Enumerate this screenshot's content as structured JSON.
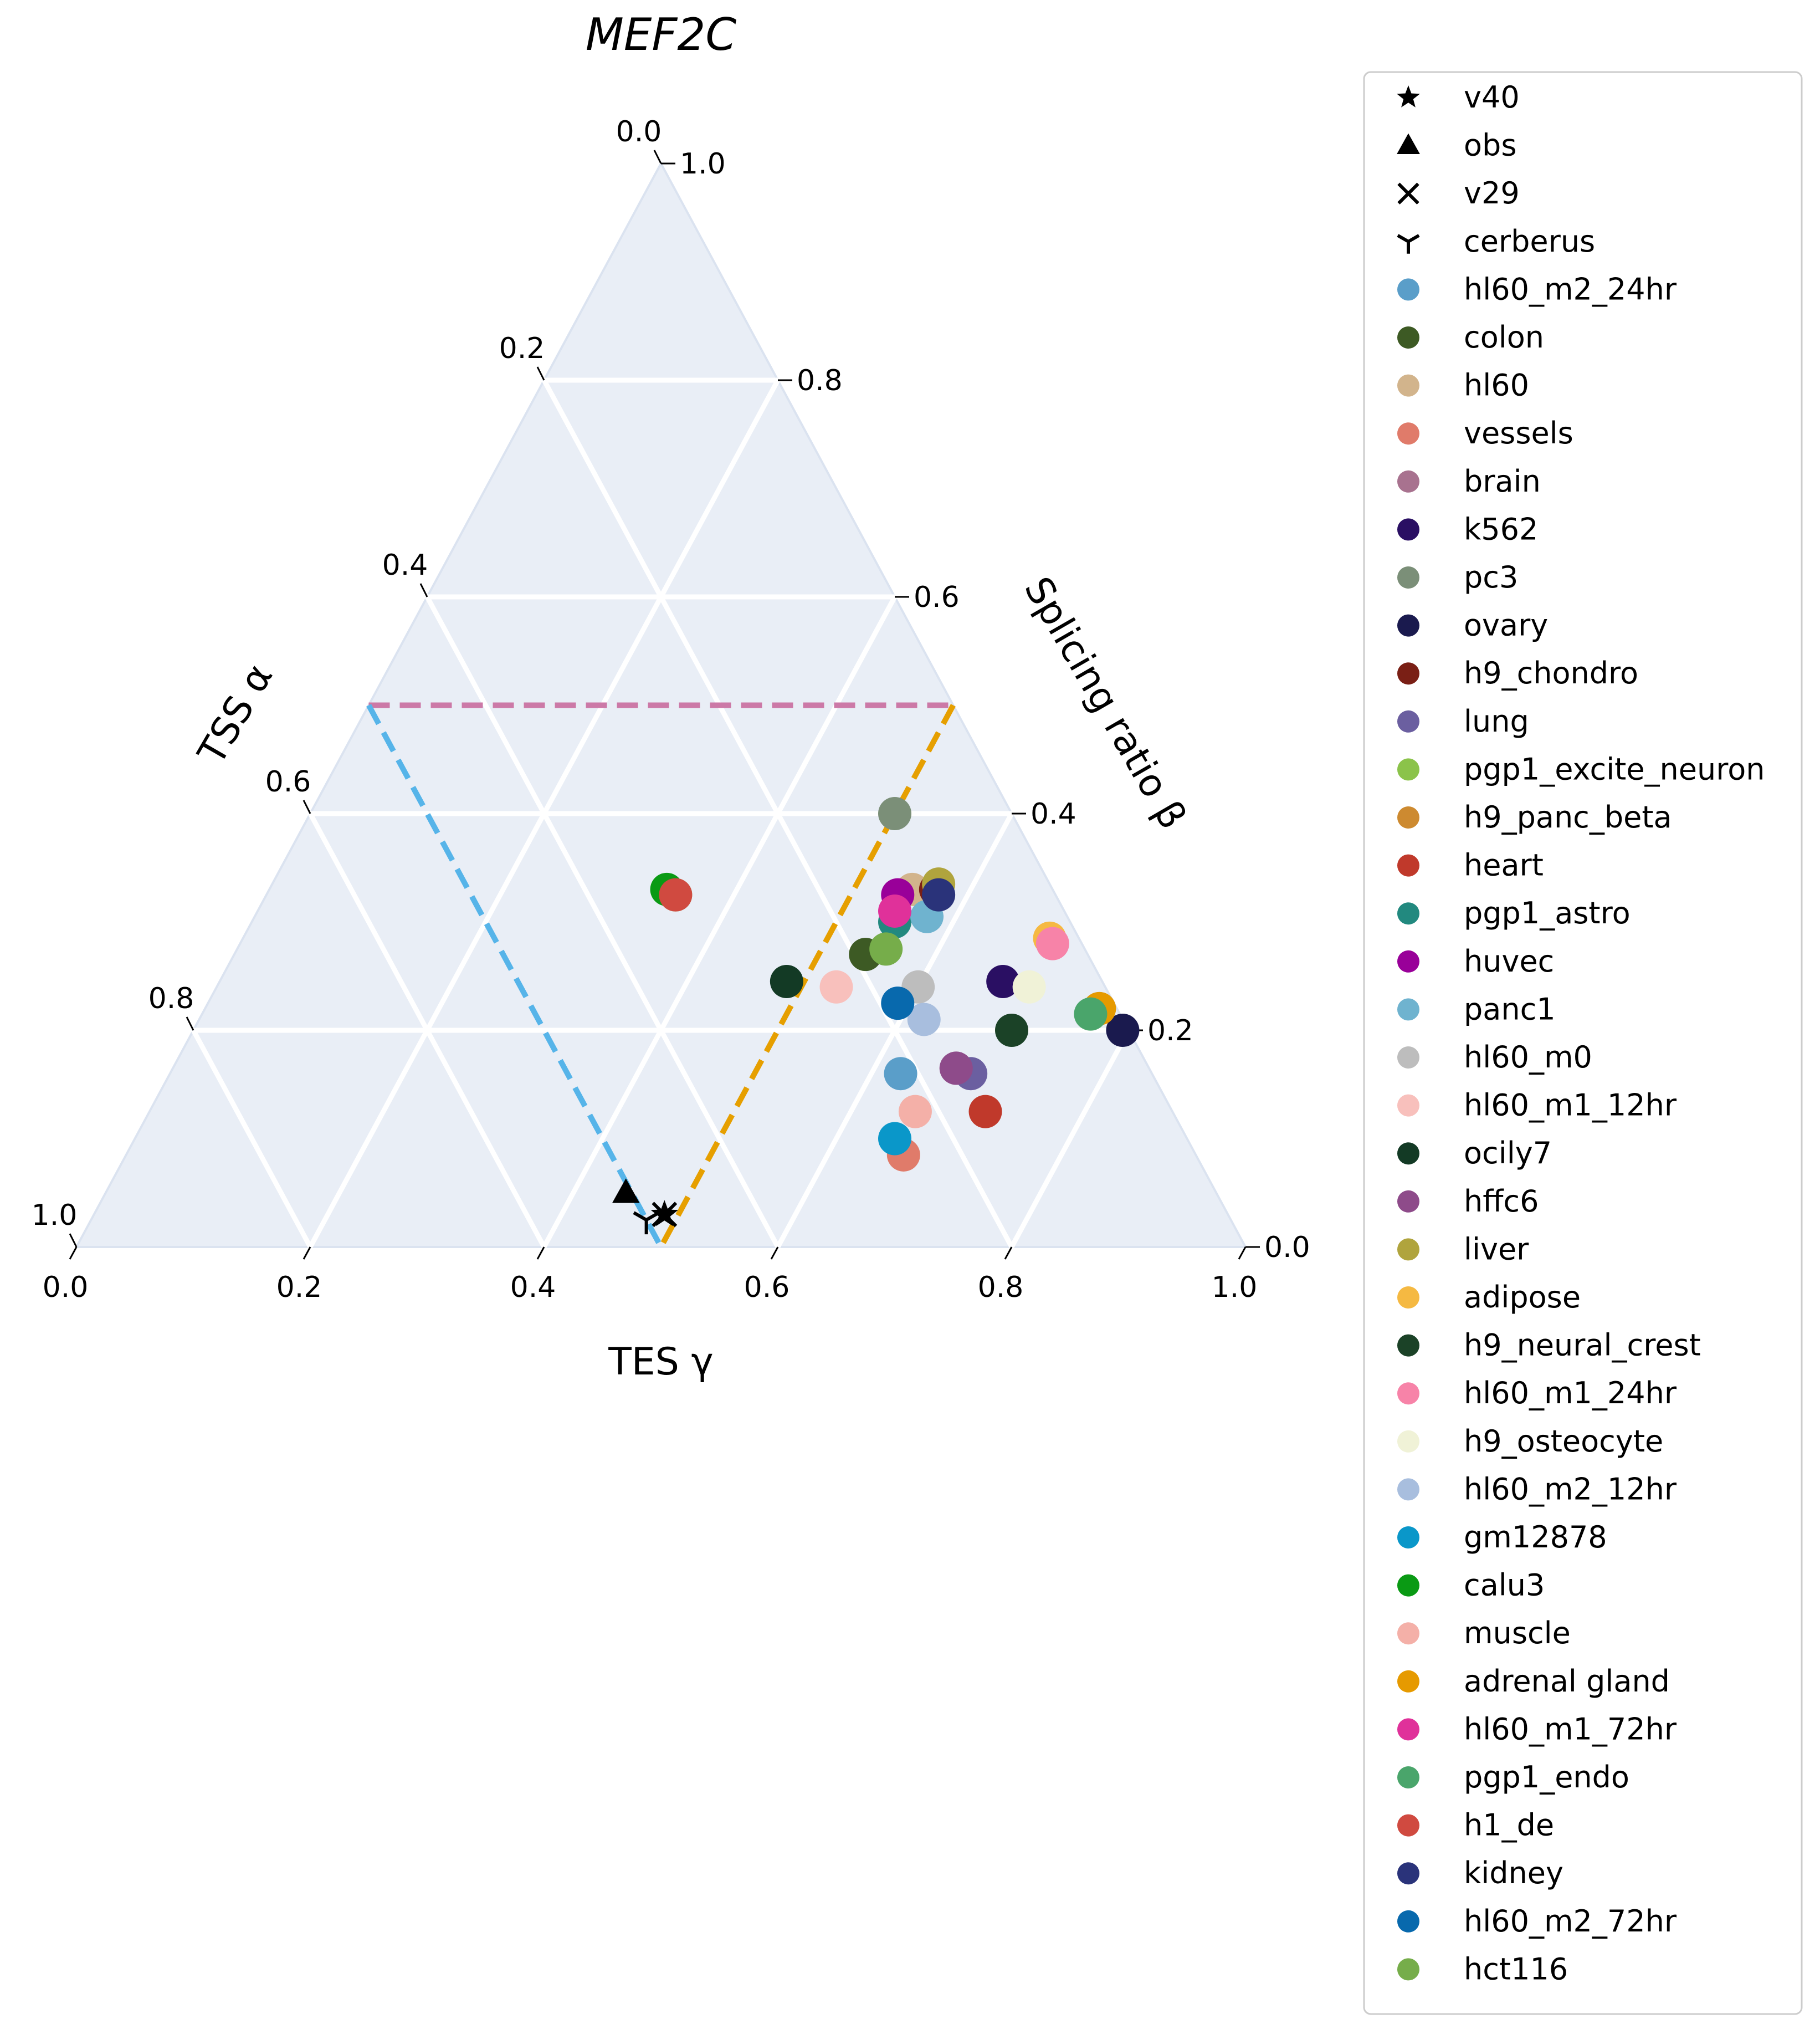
{
  "chart_data": {
    "type": "ternary-scatter",
    "title": "MEF2C",
    "axes": {
      "bottom": {
        "label": "TES γ",
        "ticks": [
          "0.0",
          "0.2",
          "0.4",
          "0.6",
          "0.8",
          "1.0"
        ]
      },
      "left": {
        "label": "TSS α",
        "ticks": [
          "0.0",
          "0.2",
          "0.4",
          "0.6",
          "0.8",
          "1.0"
        ]
      },
      "right": {
        "label": "Splicing ratio β",
        "ticks": [
          "0.0",
          "0.2",
          "0.4",
          "0.6",
          "0.8",
          "1.0"
        ]
      }
    },
    "grid": true,
    "background_color": "#e9eef6",
    "sector_lines": [
      {
        "color": "#cc79a7",
        "from": [
          0.5,
          0.5,
          0.0
        ],
        "to": [
          0.0,
          0.5,
          0.5
        ]
      },
      {
        "color": "#56b4e9",
        "from": [
          0.5,
          0.5,
          0.0
        ],
        "to": [
          0.5,
          0.0,
          0.5
        ]
      },
      {
        "color": "#e69f00",
        "from": [
          0.0,
          0.5,
          0.5
        ],
        "to": [
          0.5,
          0.0,
          0.5
        ]
      }
    ],
    "legend_position": "right",
    "series": [
      {
        "name": "v40",
        "marker": "star",
        "color": "#000000",
        "points": [
          [
            0.482,
            0.03,
            0.488
          ]
        ]
      },
      {
        "name": "obs",
        "marker": "triangle",
        "color": "#000000",
        "points": [
          [
            0.505,
            0.05,
            0.445
          ]
        ]
      },
      {
        "name": "v29",
        "marker": "x",
        "color": "#000000",
        "points": [
          [
            0.482,
            0.03,
            0.488
          ]
        ]
      },
      {
        "name": "cerberus",
        "marker": "tri_down",
        "color": "#000000",
        "points": [
          [
            0.5,
            0.025,
            0.475
          ]
        ]
      },
      {
        "name": "hl60_m2_24hr",
        "marker": "circle",
        "color": "#5a9ec9",
        "points": [
          [
            0.215,
            0.16,
            0.625
          ]
        ]
      },
      {
        "name": "colon",
        "marker": "circle",
        "color": "#3d5a24",
        "points": [
          [
            0.19,
            0.27,
            0.54
          ]
        ]
      },
      {
        "name": "hl60",
        "marker": "circle",
        "color": "#d2b48c",
        "points": [
          [
            0.12,
            0.33,
            0.55
          ]
        ]
      },
      {
        "name": "vessels",
        "marker": "circle",
        "color": "#e07b6a",
        "points": [
          [
            0.25,
            0.085,
            0.665
          ]
        ]
      },
      {
        "name": "brain",
        "marker": "circle",
        "color": "#a8728f",
        "points": [
          [
            0.165,
            0.165,
            0.67
          ]
        ]
      },
      {
        "name": "k562",
        "marker": "circle",
        "color": "#2a0f63",
        "points": [
          [
            0.085,
            0.245,
            0.67
          ]
        ]
      },
      {
        "name": "pc3",
        "marker": "circle",
        "color": "#7b8f78",
        "points": [
          [
            0.1,
            0.4,
            0.5
          ]
        ]
      },
      {
        "name": "ovary",
        "marker": "circle",
        "color": "#1a1a4e",
        "points": [
          [
            0.005,
            0.2,
            0.795
          ]
        ]
      },
      {
        "name": "h9_chondro",
        "marker": "circle",
        "color": "#7a1f15",
        "points": [
          [
            0.1,
            0.33,
            0.57
          ]
        ]
      },
      {
        "name": "lung",
        "marker": "circle",
        "color": "#6b5fa0",
        "points": [
          [
            0.155,
            0.16,
            0.685
          ]
        ]
      },
      {
        "name": "pgp1_excite_neuron",
        "marker": "circle",
        "color": "#8bc34a",
        "points": [
          [
            0.325,
            0.325,
            0.35
          ]
        ]
      },
      {
        "name": "h9_panc_beta",
        "marker": "circle",
        "color": "#cd8a30",
        "points": [
          [
            0.015,
            0.22,
            0.765
          ]
        ]
      },
      {
        "name": "heart",
        "marker": "circle",
        "color": "#c0392b",
        "points": [
          [
            0.16,
            0.125,
            0.715
          ]
        ]
      },
      {
        "name": "pgp1_astro",
        "marker": "circle",
        "color": "#22897f",
        "points": [
          [
            0.15,
            0.3,
            0.55
          ]
        ]
      },
      {
        "name": "huvec",
        "marker": "circle",
        "color": "#990099",
        "points": [
          [
            0.135,
            0.325,
            0.54
          ]
        ]
      },
      {
        "name": "panc1",
        "marker": "circle",
        "color": "#6fb3cf",
        "points": [
          [
            0.12,
            0.305,
            0.575
          ]
        ]
      },
      {
        "name": "hl60_m0",
        "marker": "circle",
        "color": "#bdbdbd",
        "points": [
          [
            0.16,
            0.24,
            0.6
          ]
        ]
      },
      {
        "name": "hl60_m1_12hr",
        "marker": "circle",
        "color": "#f8c0bc",
        "points": [
          [
            0.23,
            0.24,
            0.53
          ]
        ]
      },
      {
        "name": "ocily7",
        "marker": "circle",
        "color": "#133a25",
        "points": [
          [
            0.27,
            0.245,
            0.485
          ]
        ]
      },
      {
        "name": "hffc6",
        "marker": "circle",
        "color": "#8e4b8a",
        "points": [
          [
            0.165,
            0.165,
            0.67
          ]
        ]
      },
      {
        "name": "liver",
        "marker": "circle",
        "color": "#b0a43d",
        "points": [
          [
            0.095,
            0.335,
            0.57
          ]
        ]
      },
      {
        "name": "adipose",
        "marker": "circle",
        "color": "#f5b942",
        "points": [
          [
            0.025,
            0.285,
            0.69
          ]
        ]
      },
      {
        "name": "h9_neural_crest",
        "marker": "circle",
        "color": "#1b4227",
        "points": [
          [
            0.1,
            0.2,
            0.7
          ]
        ]
      },
      {
        "name": "hl60_m1_24hr",
        "marker": "circle",
        "color": "#f783a8",
        "points": [
          [
            0.025,
            0.28,
            0.695
          ]
        ]
      },
      {
        "name": "h9_osteocyte",
        "marker": "circle",
        "color": "#f0f2d7",
        "points": [
          [
            0.065,
            0.24,
            0.695
          ]
        ]
      },
      {
        "name": "hl60_m2_12hr",
        "marker": "circle",
        "color": "#a8bede",
        "points": [
          [
            0.17,
            0.21,
            0.62
          ]
        ]
      },
      {
        "name": "gm12878",
        "marker": "circle",
        "color": "#0a97c9",
        "points": [
          [
            0.25,
            0.1,
            0.65
          ]
        ]
      },
      {
        "name": "calu3",
        "marker": "circle",
        "color": "#0a9a14",
        "points": [
          [
            0.33,
            0.33,
            0.34
          ]
        ]
      },
      {
        "name": "muscle",
        "marker": "circle",
        "color": "#f4b0a8",
        "points": [
          [
            0.22,
            0.125,
            0.655
          ]
        ]
      },
      {
        "name": "adrenal gland",
        "marker": "circle",
        "color": "#e69a00",
        "points": [
          [
            0.015,
            0.22,
            0.765
          ]
        ]
      },
      {
        "name": "hl60_m1_72hr",
        "marker": "circle",
        "color": "#e0319a",
        "points": [
          [
            0.145,
            0.31,
            0.545
          ]
        ]
      },
      {
        "name": "pgp1_endo",
        "marker": "circle",
        "color": "#4aa56b",
        "points": [
          [
            0.025,
            0.215,
            0.76
          ]
        ]
      },
      {
        "name": "h1_de",
        "marker": "circle",
        "color": "#d04a40",
        "points": [
          [
            0.325,
            0.325,
            0.35
          ]
        ]
      },
      {
        "name": "kidney",
        "marker": "circle",
        "color": "#2a337a",
        "points": [
          [
            0.1,
            0.325,
            0.575
          ]
        ]
      },
      {
        "name": "hl60_m2_72hr",
        "marker": "circle",
        "color": "#0869ad",
        "points": [
          [
            0.185,
            0.225,
            0.59
          ]
        ]
      },
      {
        "name": "hct116",
        "marker": "circle",
        "color": "#76ad4a",
        "points": [
          [
            0.17,
            0.275,
            0.555
          ]
        ]
      }
    ]
  }
}
